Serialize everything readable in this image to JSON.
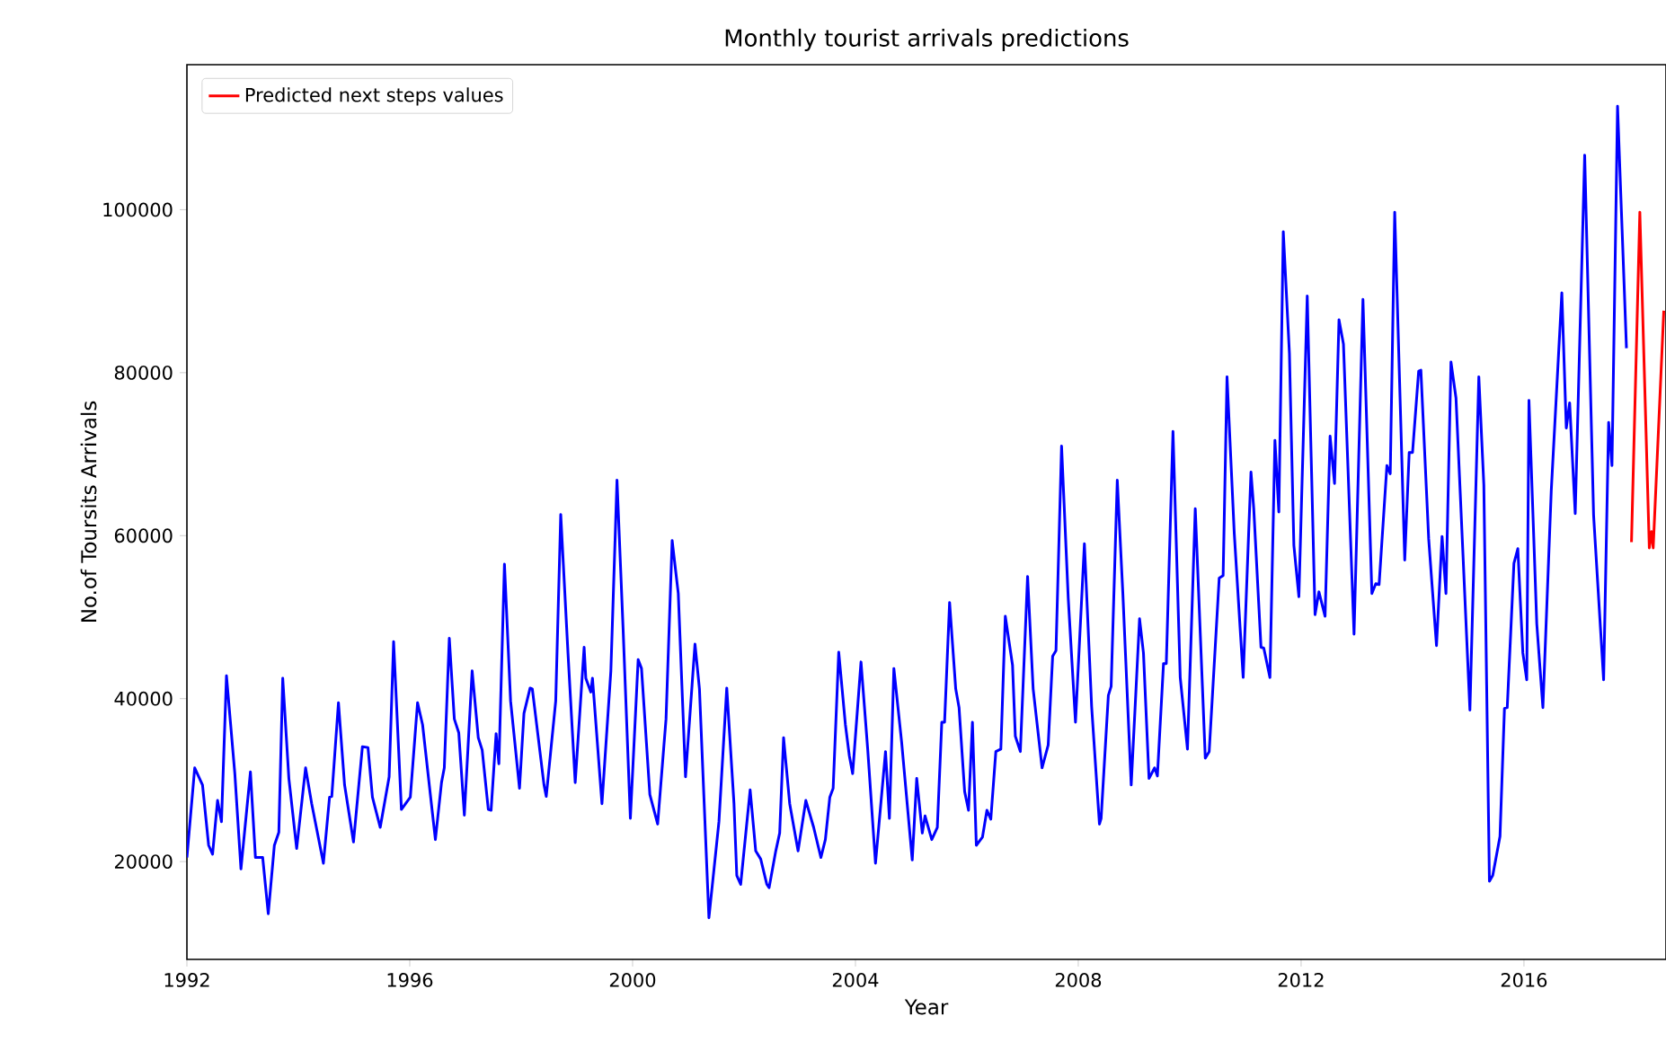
{
  "chart_data": {
    "type": "line",
    "title": "Monthly tourist arrivals predictions",
    "xlabel": "Year",
    "ylabel": "No.of Toursits Arrivals",
    "xlim": [
      1992,
      2018.55
    ],
    "ylim": [
      8000,
      117800
    ],
    "xticks": [
      1992,
      1996,
      2000,
      2004,
      2008,
      2012,
      2016
    ],
    "yticks": [
      20000,
      40000,
      60000,
      80000,
      100000
    ],
    "legend": "top left",
    "grid": false,
    "line_style": "solid",
    "marker": "none",
    "series": [
      {
        "color": "#0000ff",
        "x": [
          1992.0,
          1992.14,
          1992.28,
          1992.39,
          1992.46,
          1992.55,
          1992.62,
          1992.71,
          1992.86,
          1992.97,
          1993.14,
          1993.23,
          1993.36,
          1993.46,
          1993.57,
          1993.65,
          1993.72,
          1993.83,
          1993.97,
          1994.13,
          1994.24,
          1994.45,
          1994.56,
          1994.6,
          1994.72,
          1994.83,
          1994.99,
          1995.15,
          1995.25,
          1995.33,
          1995.47,
          1995.63,
          1995.71,
          1995.85,
          1996.01,
          1996.14,
          1996.23,
          1996.46,
          1996.57,
          1996.62,
          1996.71,
          1996.8,
          1996.88,
          1996.98,
          1997.12,
          1997.23,
          1997.3,
          1997.41,
          1997.46,
          1997.55,
          1997.6,
          1997.7,
          1997.81,
          1997.97,
          1998.05,
          1998.16,
          1998.2,
          1998.41,
          1998.45,
          1998.62,
          1998.71,
          1998.84,
          1998.97,
          1999.13,
          1999.16,
          1999.25,
          1999.28,
          1999.45,
          1999.61,
          1999.72,
          1999.83,
          1999.96,
          2000.1,
          2000.16,
          2000.31,
          2000.45,
          2000.6,
          2000.71,
          2000.82,
          2000.95,
          2001.12,
          2001.2,
          2001.37,
          2001.55,
          2001.69,
          2001.82,
          2001.87,
          2001.94,
          2002.11,
          2002.21,
          2002.3,
          2002.41,
          2002.45,
          2002.57,
          2002.64,
          2002.71,
          2002.82,
          2002.97,
          2003.11,
          2003.25,
          2003.38,
          2003.46,
          2003.54,
          2003.6,
          2003.7,
          2003.82,
          2003.89,
          2003.95,
          2004.1,
          2004.22,
          2004.36,
          2004.54,
          2004.61,
          2004.69,
          2004.83,
          2005.02,
          2005.1,
          2005.2,
          2005.25,
          2005.37,
          2005.47,
          2005.55,
          2005.6,
          2005.69,
          2005.8,
          2005.86,
          2005.96,
          2006.03,
          2006.1,
          2006.17,
          2006.28,
          2006.36,
          2006.43,
          2006.52,
          2006.61,
          2006.69,
          2006.82,
          2006.87,
          2006.96,
          2007.09,
          2007.19,
          2007.35,
          2007.46,
          2007.54,
          2007.6,
          2007.7,
          2007.82,
          2007.95,
          2008.11,
          2008.24,
          2008.38,
          2008.41,
          2008.54,
          2008.59,
          2008.7,
          2008.8,
          2008.95,
          2009.1,
          2009.17,
          2009.27,
          2009.37,
          2009.42,
          2009.53,
          2009.58,
          2009.7,
          2009.83,
          2009.96,
          2010.1,
          2010.28,
          2010.35,
          2010.53,
          2010.6,
          2010.67,
          2010.8,
          2010.96,
          2011.1,
          2011.15,
          2011.28,
          2011.33,
          2011.44,
          2011.53,
          2011.6,
          2011.68,
          2011.79,
          2011.87,
          2011.96,
          2012.11,
          2012.25,
          2012.32,
          2012.43,
          2012.52,
          2012.6,
          2012.68,
          2012.76,
          2012.95,
          2013.11,
          2013.27,
          2013.34,
          2013.4,
          2013.54,
          2013.6,
          2013.68,
          2013.86,
          2013.94,
          2014.0,
          2014.11,
          2014.15,
          2014.29,
          2014.43,
          2014.53,
          2014.6,
          2014.69,
          2014.78,
          2015.03,
          2015.19,
          2015.28,
          2015.38,
          2015.44,
          2015.57,
          2015.65,
          2015.7,
          2015.82,
          2015.89,
          2015.98,
          2016.05,
          2016.09,
          2016.23,
          2016.34,
          2016.49,
          2016.68,
          2016.76,
          2016.82,
          2016.92,
          2017.09,
          2017.25,
          2017.43,
          2017.52,
          2017.58,
          2017.68,
          2017.84
        ],
        "values": [
          20500,
          31500,
          29400,
          22000,
          20900,
          27500,
          24900,
          42800,
          30800,
          19100,
          31000,
          20500,
          20500,
          13600,
          22000,
          23600,
          42500,
          30200,
          21600,
          31500,
          27100,
          19800,
          27900,
          28000,
          39500,
          29400,
          22400,
          34100,
          34000,
          27900,
          24200,
          30400,
          47000,
          26400,
          27900,
          39500,
          36800,
          22700,
          29700,
          31500,
          47400,
          37500,
          35800,
          25700,
          43400,
          35200,
          33700,
          26400,
          26300,
          35700,
          32000,
          56500,
          39700,
          29000,
          38200,
          41300,
          41200,
          29400,
          28000,
          39700,
          62600,
          45600,
          29700,
          46300,
          42500,
          40800,
          42500,
          27100,
          43400,
          66800,
          48500,
          25300,
          44800,
          43700,
          28200,
          24600,
          37500,
          59400,
          52900,
          30400,
          46700,
          41200,
          13100,
          24900,
          41300,
          27100,
          18300,
          17200,
          28800,
          21300,
          20300,
          17200,
          16800,
          21300,
          23500,
          35200,
          27100,
          21300,
          27500,
          24200,
          20500,
          22700,
          27900,
          29000,
          45700,
          36800,
          33000,
          30800,
          44500,
          33800,
          19800,
          33500,
          25300,
          43700,
          34600,
          20200,
          30200,
          23500,
          25600,
          22700,
          24200,
          37100,
          37100,
          51800,
          41200,
          38900,
          28600,
          26300,
          37100,
          22000,
          23000,
          26300,
          25200,
          33500,
          33800,
          50100,
          44100,
          35400,
          33500,
          55000,
          41200,
          31500,
          34300,
          45200,
          45900,
          71000,
          52300,
          37100,
          59000,
          39000,
          24600,
          25300,
          40400,
          41500,
          66800,
          52900,
          29400,
          49800,
          45600,
          30200,
          31500,
          30500,
          44300,
          44300,
          72800,
          42600,
          33800,
          63300,
          32700,
          33500,
          54800,
          55100,
          79500,
          60300,
          42600,
          67800,
          63300,
          46300,
          46200,
          42600,
          71700,
          62900,
          97300,
          82400,
          58800,
          52500,
          89400,
          50300,
          53100,
          50100,
          72200,
          66400,
          86500,
          83500,
          47900,
          89000,
          52900,
          54100,
          54000,
          68600,
          67600,
          99700,
          57000,
          70200,
          70200,
          80200,
          80300,
          59600,
          46500,
          59900,
          52900,
          81300,
          76900,
          38600,
          79500,
          66200,
          17600,
          18300,
          23100,
          38800,
          38900,
          56600,
          58400,
          45600,
          42300,
          76600,
          49200,
          38900,
          65500,
          89800,
          73200,
          76300,
          62700,
          106700,
          62500,
          42300,
          73900,
          68600,
          112700,
          83000
        ]
      },
      {
        "name": "Predicted next steps values",
        "color": "#ff0000",
        "x": [
          2017.93,
          2018.08,
          2018.25,
          2018.29,
          2018.32,
          2018.51
        ],
        "values": [
          59200,
          99700,
          58500,
          60500,
          58500,
          87600
        ]
      }
    ]
  }
}
